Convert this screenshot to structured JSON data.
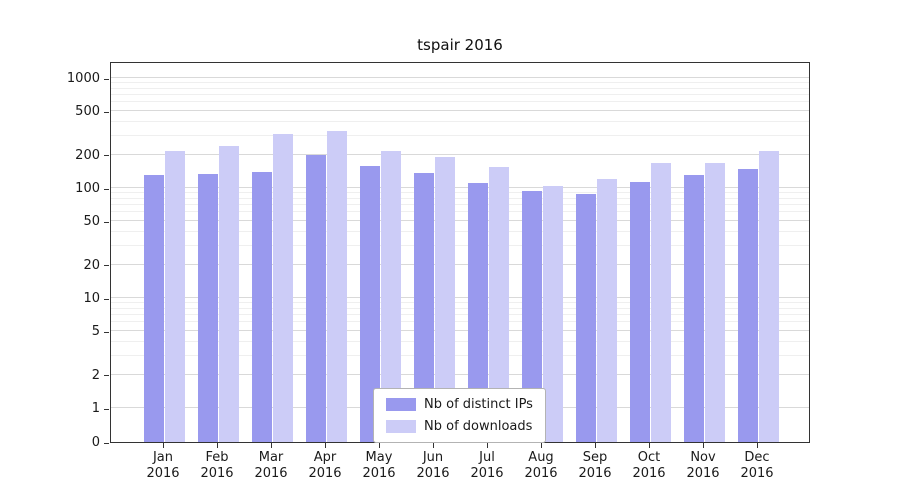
{
  "chart_data": {
    "type": "bar",
    "title": "tspair 2016",
    "year": "2016",
    "months": [
      "Jan",
      "Feb",
      "Mar",
      "Apr",
      "May",
      "Jun",
      "Jul",
      "Aug",
      "Sep",
      "Oct",
      "Nov",
      "Dec"
    ],
    "categories": [
      "Jan 2016",
      "Feb 2016",
      "Mar 2016",
      "Apr 2016",
      "May 2016",
      "Jun 2016",
      "Jul 2016",
      "Aug 2016",
      "Sep 2016",
      "Oct 2016",
      "Nov 2016",
      "Dec 2016"
    ],
    "series": [
      {
        "name": "Nb of distinct IPs",
        "color": "#9999ee",
        "values": [
          130,
          135,
          140,
          200,
          160,
          138,
          112,
          93,
          88,
          113,
          132,
          148
        ]
      },
      {
        "name": "Nb of downloads",
        "color": "#ccccf7",
        "values": [
          215,
          240,
          310,
          330,
          215,
          190,
          155,
          105,
          122,
          168,
          170,
          215
        ]
      }
    ],
    "y_ticks": [
      0,
      1,
      2,
      5,
      10,
      20,
      50,
      100,
      200,
      500,
      1000
    ],
    "y_scale": "log",
    "ylim": [
      0,
      1400
    ],
    "grid": true,
    "legend_position": "lower center"
  }
}
